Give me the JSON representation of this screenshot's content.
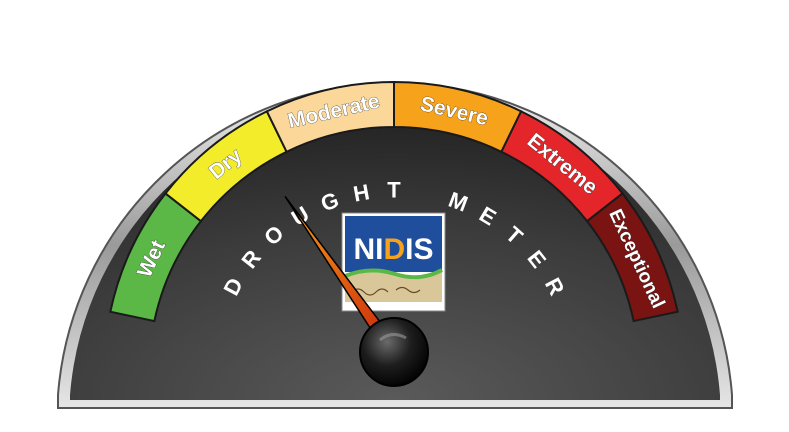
{
  "meter": {
    "title": "DROUGHT METER",
    "reading_category": "Dry",
    "categories": [
      {
        "label": "Wet",
        "color": "#5bb847"
      },
      {
        "label": "Dry",
        "color": "#f3ec2a"
      },
      {
        "label": "Moderate",
        "color": "#fbd89a"
      },
      {
        "label": "Severe",
        "color": "#f7a21b"
      },
      {
        "label": "Extreme",
        "color": "#e4262a"
      },
      {
        "label": "Exceptional",
        "color": "#7a1412"
      }
    ],
    "needle_icon": "gauge-needle",
    "hub_icon": "gauge-hub"
  },
  "logo": {
    "text_prefix": "NI",
    "text_highlight": "D",
    "text_suffix": "IS",
    "colors": {
      "background": "#1f4e9c",
      "text": "#ffffff",
      "highlight": "#f7a21b",
      "land": "#d9c79a"
    }
  }
}
